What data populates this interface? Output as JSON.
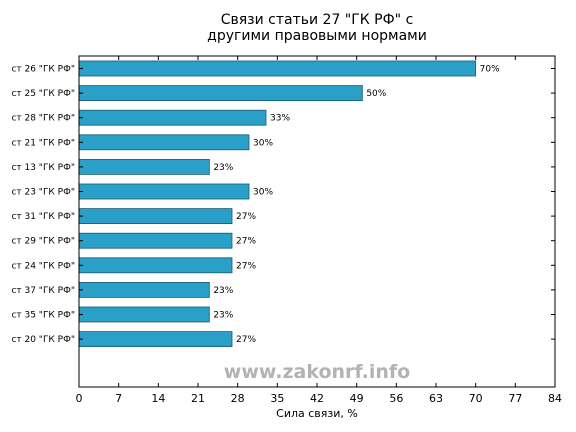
{
  "chart_data": {
    "type": "bar",
    "orientation": "horizontal",
    "title_lines": [
      "Связи статьи 27 \"ГК РФ\" с",
      "другими правовыми нормами"
    ],
    "xlabel": "Сила связи, %",
    "ylabel": "",
    "xlim": [
      0,
      84
    ],
    "xticks": [
      0,
      7,
      14,
      21,
      28,
      35,
      42,
      49,
      56,
      63,
      70,
      77,
      84
    ],
    "grid": false,
    "categories": [
      "ст 26 \"ГК РФ\"",
      "ст 25 \"ГК РФ\"",
      "ст 28 \"ГК РФ\"",
      "ст 21 \"ГК РФ\"",
      "ст 13 \"ГК РФ\"",
      "ст 23 \"ГК РФ\"",
      "ст 31 \"ГК РФ\"",
      "ст 29 \"ГК РФ\"",
      "ст 24 \"ГК РФ\"",
      "ст 37 \"ГК РФ\"",
      "ст 35 \"ГК РФ\"",
      "ст 20 \"ГК РФ\""
    ],
    "values": [
      70,
      50,
      33,
      30,
      23,
      30,
      27,
      27,
      27,
      23,
      23,
      27
    ],
    "data_labels": [
      "70%",
      "50%",
      "33%",
      "30%",
      "23%",
      "30%",
      "27%",
      "27%",
      "27%",
      "23%",
      "23%",
      "27%"
    ],
    "bar_color": "#2a9fc7",
    "bar_edge_color": "#1a5a70"
  },
  "watermark": "www.zakonrf.info"
}
